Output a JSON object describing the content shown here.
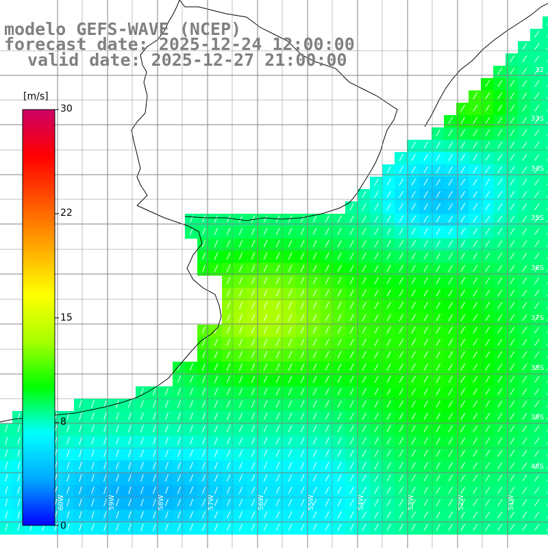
{
  "title": {
    "line1": "modelo GEFS-WAVE (NCEP)",
    "line2": "forecast date: 2025-12-24 12:00:00",
    "line3": "valid date: 2025-12-27 21:00:00"
  },
  "colorbar": {
    "unit": "[m/s]",
    "ticks": [
      "30",
      "22",
      "15",
      "8",
      "0"
    ],
    "stops": [
      "#0000ff",
      "#00aaff",
      "#00ffff",
      "#00ff00",
      "#aaff00",
      "#ffff00",
      "#ffaa00",
      "#ff5500",
      "#ff0000",
      "#cc0066"
    ]
  },
  "grid": {
    "lat_labels": [
      "32",
      "33S",
      "34S",
      "35S",
      "36S",
      "37S",
      "38S",
      "39S",
      "40S"
    ],
    "lon_labels": [
      "60W",
      "59W",
      "58W",
      "57W",
      "56W",
      "55W",
      "54W",
      "53W",
      "52W",
      "51W"
    ]
  },
  "colors": {
    "land": "#ffffff",
    "coast": "#000000",
    "grid": "#808080",
    "arrow": "#ffffff"
  }
}
